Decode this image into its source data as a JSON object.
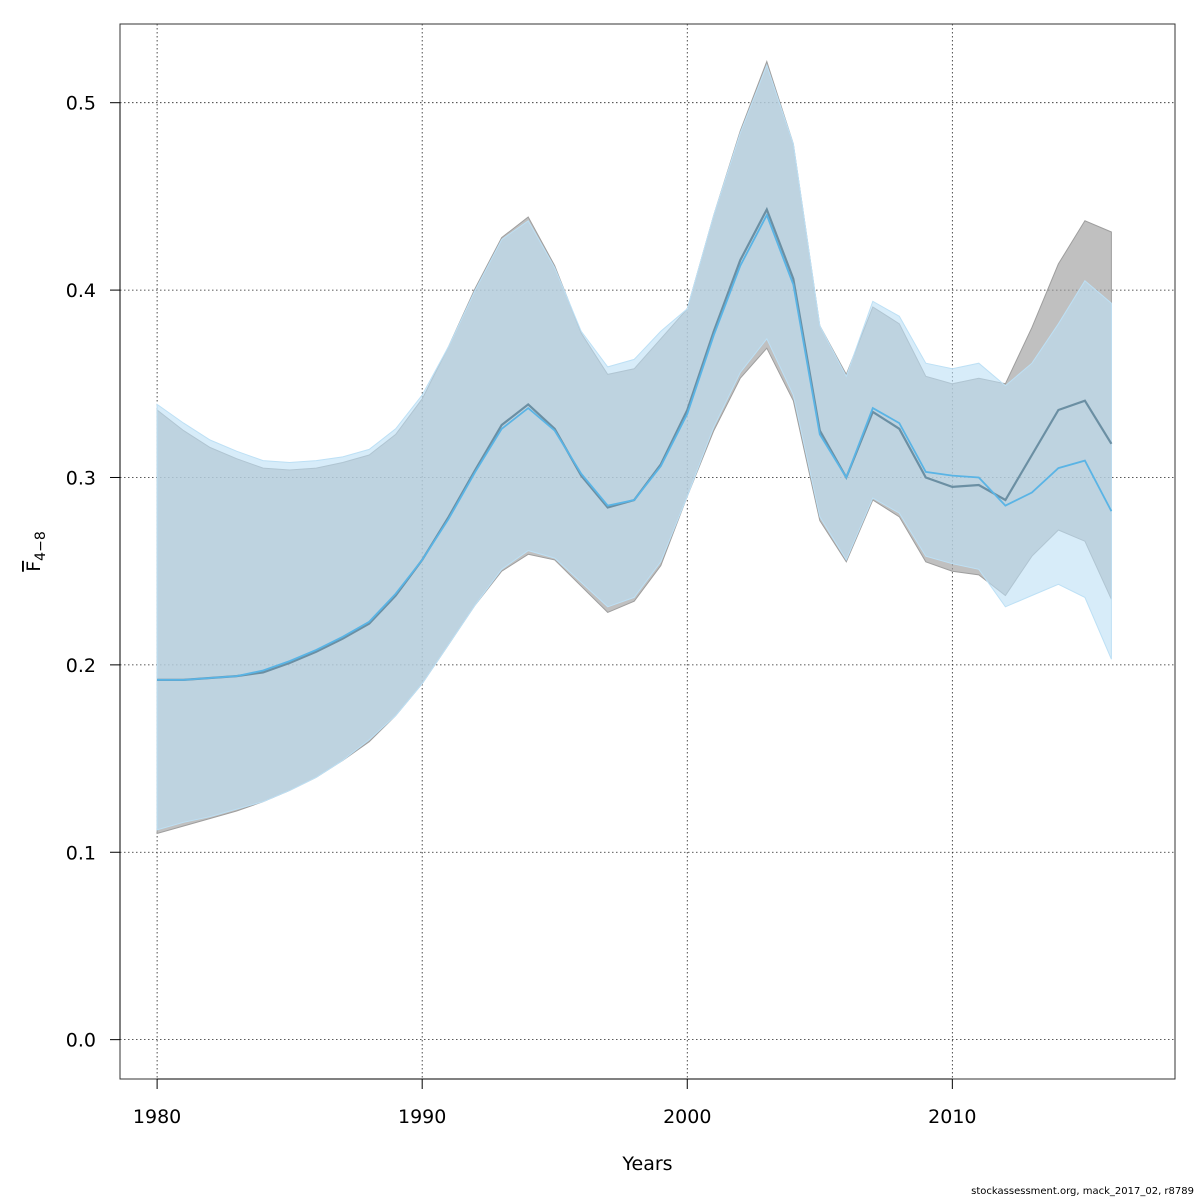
{
  "chart_data": {
    "type": "area",
    "xlabel": "Years",
    "ylabel": "F",
    "ylabel_subscript": "4−8",
    "xlim": [
      1978.6,
      2018.4
    ],
    "ylim": [
      -0.021,
      0.542
    ],
    "x_ticks": [
      1980,
      1990,
      2000,
      2010
    ],
    "y_ticks": [
      0.0,
      0.1,
      0.2,
      0.3,
      0.4,
      0.5
    ],
    "x_tick_labels": [
      "1980",
      "1990",
      "2000",
      "2010"
    ],
    "y_tick_labels": [
      "0.0",
      "0.1",
      "0.2",
      "0.3",
      "0.4",
      "0.5"
    ],
    "grid": true,
    "x": [
      1980,
      1981,
      1982,
      1983,
      1984,
      1985,
      1986,
      1987,
      1988,
      1989,
      1990,
      1991,
      1992,
      1993,
      1994,
      1995,
      1996,
      1997,
      1998,
      1999,
      2000,
      2001,
      2002,
      2003,
      2004,
      2005,
      2006,
      2007,
      2008,
      2009,
      2010,
      2011,
      2012,
      2013,
      2014,
      2015,
      2016
    ],
    "series": [
      {
        "color": "#6b8fa3",
        "band_color": "#9e9e9e",
        "estimate": [
          0.192,
          0.192,
          0.193,
          0.194,
          0.196,
          0.201,
          0.207,
          0.214,
          0.222,
          0.237,
          0.256,
          0.279,
          0.304,
          0.328,
          0.339,
          0.326,
          0.301,
          0.284,
          0.288,
          0.307,
          0.336,
          0.378,
          0.416,
          0.443,
          0.406,
          0.325,
          0.3,
          0.335,
          0.326,
          0.3,
          0.295,
          0.296,
          0.288,
          0.312,
          0.336,
          0.341,
          0.318
        ],
        "lower": [
          0.11,
          0.114,
          0.118,
          0.122,
          0.127,
          0.133,
          0.14,
          0.149,
          0.159,
          0.173,
          0.19,
          0.211,
          0.232,
          0.25,
          0.259,
          0.256,
          0.242,
          0.228,
          0.234,
          0.253,
          0.29,
          0.325,
          0.353,
          0.369,
          0.341,
          0.277,
          0.255,
          0.288,
          0.279,
          0.255,
          0.25,
          0.248,
          0.237,
          0.258,
          0.272,
          0.266,
          0.235
        ],
        "upper": [
          0.336,
          0.325,
          0.316,
          0.31,
          0.305,
          0.304,
          0.305,
          0.308,
          0.312,
          0.323,
          0.342,
          0.37,
          0.401,
          0.428,
          0.439,
          0.413,
          0.377,
          0.355,
          0.358,
          0.374,
          0.39,
          0.44,
          0.485,
          0.522,
          0.478,
          0.381,
          0.355,
          0.391,
          0.382,
          0.354,
          0.35,
          0.353,
          0.35,
          0.38,
          0.414,
          0.437,
          0.431
        ]
      },
      {
        "color": "#5ab4e5",
        "band_color": "#bde0f5",
        "estimate": [
          0.192,
          0.192,
          0.193,
          0.194,
          0.197,
          0.202,
          0.208,
          0.215,
          0.223,
          0.238,
          0.256,
          0.278,
          0.303,
          0.326,
          0.337,
          0.325,
          0.302,
          0.285,
          0.288,
          0.306,
          0.334,
          0.376,
          0.413,
          0.44,
          0.403,
          0.323,
          0.3,
          0.337,
          0.329,
          0.303,
          0.301,
          0.3,
          0.285,
          0.292,
          0.305,
          0.309,
          0.282
        ],
        "lower": [
          0.112,
          0.116,
          0.119,
          0.123,
          0.127,
          0.133,
          0.14,
          0.149,
          0.16,
          0.173,
          0.19,
          0.211,
          0.232,
          0.251,
          0.261,
          0.257,
          0.244,
          0.231,
          0.236,
          0.255,
          0.29,
          0.327,
          0.356,
          0.374,
          0.344,
          0.279,
          0.256,
          0.289,
          0.281,
          0.258,
          0.254,
          0.251,
          0.231,
          0.237,
          0.243,
          0.236,
          0.203
        ],
        "upper": [
          0.339,
          0.329,
          0.32,
          0.314,
          0.309,
          0.308,
          0.309,
          0.311,
          0.315,
          0.326,
          0.344,
          0.37,
          0.4,
          0.427,
          0.437,
          0.412,
          0.378,
          0.359,
          0.363,
          0.378,
          0.39,
          0.44,
          0.484,
          0.52,
          0.478,
          0.381,
          0.354,
          0.394,
          0.386,
          0.361,
          0.358,
          0.361,
          0.349,
          0.361,
          0.382,
          0.405,
          0.393
        ]
      }
    ]
  },
  "footer": {
    "text": "stockassessment.org, mack_2017_02, r8789"
  }
}
